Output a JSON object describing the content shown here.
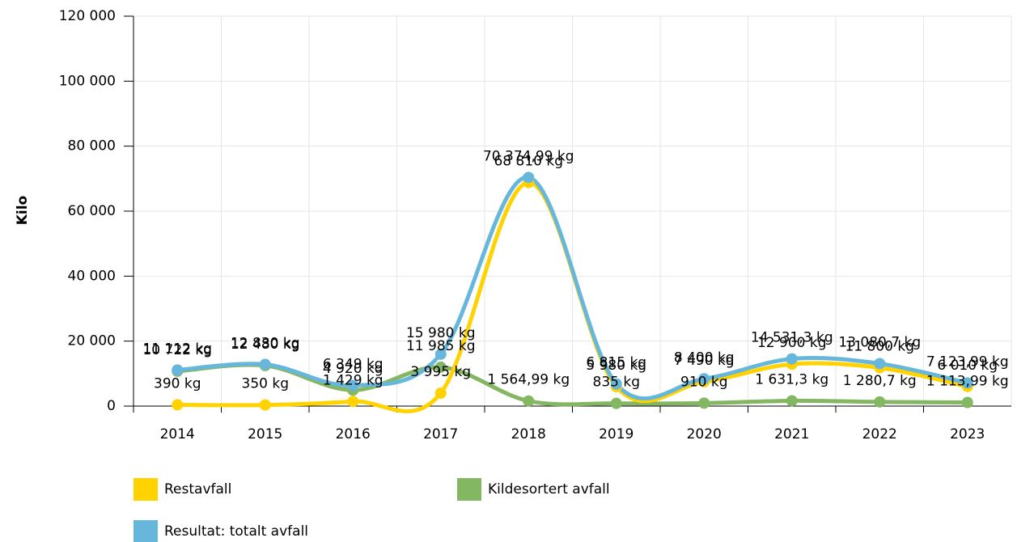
{
  "chart_data": {
    "type": "line",
    "y_label": "Kilo",
    "categories": [
      "2014",
      "2015",
      "2016",
      "2017",
      "2018",
      "2019",
      "2020",
      "2021",
      "2022",
      "2023"
    ],
    "series": [
      {
        "name": "Restavfall",
        "color": "#ffd200",
        "values": [
          390,
          350,
          1429,
          3995,
          68810,
          5980,
          7490,
          12900,
          11800,
          6010
        ],
        "value_labels": [
          "390 kg",
          "350 kg",
          "1 429 kg",
          "3 995 kg",
          "68 810 kg",
          "5 980 kg",
          "7 490 kg",
          "12 900 kg",
          "11 800 kg",
          "6 010 kg"
        ]
      },
      {
        "name": "Kildesortert avfall",
        "color": "#84b761",
        "values": [
          10722,
          12480,
          4920,
          11985,
          1564.99,
          835,
          910,
          1631.3,
          1280.7,
          1113.99
        ],
        "value_labels": [
          "10 722 kg",
          "12 480 kg",
          "4 920 kg",
          "11 985 kg",
          "1 564,99 kg",
          "835 kg",
          "910 kg",
          "1 631,3 kg",
          "1 280,7 kg",
          "1 113,99 kg"
        ]
      },
      {
        "name": "Resultat: totalt avfall",
        "color": "#67b7dc",
        "values": [
          11112,
          12830,
          6349,
          15980,
          70374.99,
          6815,
          8400,
          14531.3,
          13080.7,
          7123.99
        ],
        "value_labels": [
          "11 112 kg",
          "12 830 kg",
          "6 349 kg",
          "15 980 kg",
          "70 374,99 kg",
          "6 815 kg",
          "8 400 kg",
          "14 531,3 kg",
          "13 080,7 kg",
          "7 123,99 kg"
        ]
      }
    ],
    "ylim": [
      0,
      120000
    ],
    "yticks": [
      0,
      {
        "value": 20000,
        "label": "20 000"
      },
      {
        "value": 40000,
        "label": "40 000"
      },
      {
        "value": 60000,
        "label": "60 000"
      },
      {
        "value": 80000,
        "label": "80 000"
      },
      {
        "value": 100000,
        "label": "100 000"
      },
      {
        "value": 120000,
        "label": "120 000"
      }
    ],
    "grid": true
  }
}
